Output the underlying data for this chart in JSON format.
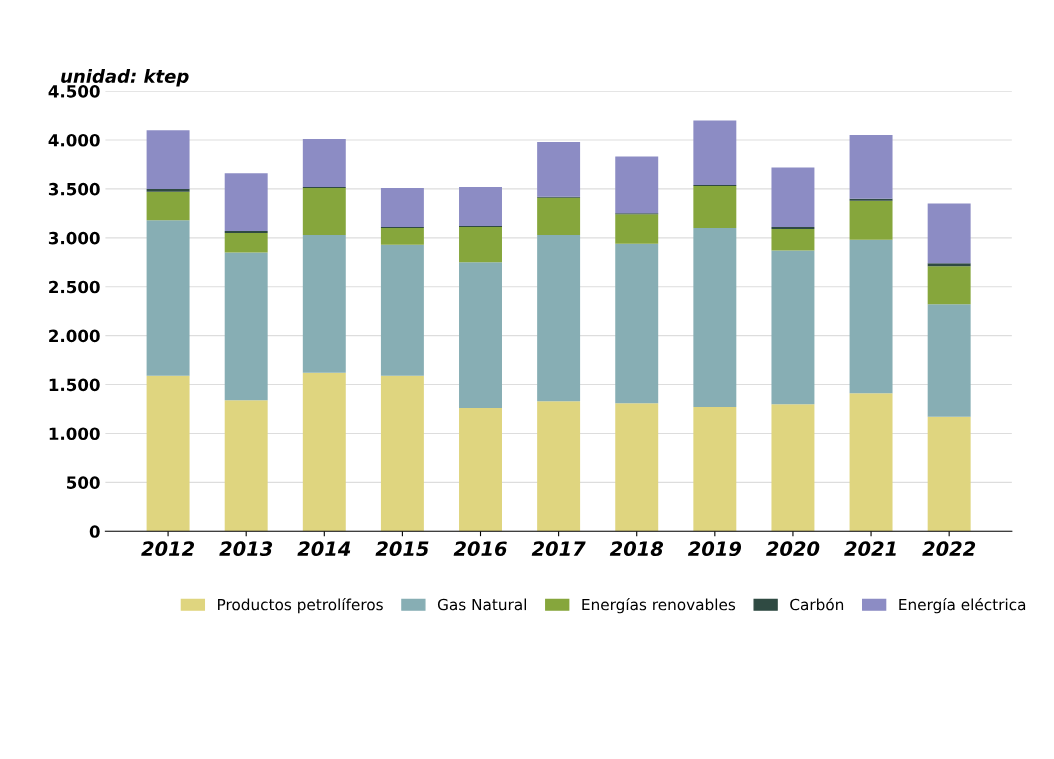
{
  "chart_data": {
    "type": "bar",
    "stacked": true,
    "ylabel": "unidad: ktep",
    "categories": [
      "2012",
      "2013",
      "2014",
      "2015",
      "2016",
      "2017",
      "2018",
      "2019",
      "2020",
      "2021",
      "2022"
    ],
    "series": [
      {
        "name": "Productos petrolíferos",
        "color": "#dfd57f",
        "values": [
          1590,
          1340,
          1620,
          1590,
          1260,
          1330,
          1310,
          1270,
          1300,
          1410,
          1170
        ]
      },
      {
        "name": "Gas Natural",
        "color": "#87aeb4",
        "values": [
          1590,
          1510,
          1410,
          1340,
          1490,
          1700,
          1630,
          1830,
          1570,
          1570,
          1150
        ]
      },
      {
        "name": "Energías renovables",
        "color": "#86a63c",
        "values": [
          290,
          200,
          480,
          170,
          360,
          380,
          300,
          430,
          220,
          400,
          390
        ]
      },
      {
        "name": "Carbón",
        "color": "#2f4a42",
        "values": [
          30,
          20,
          10,
          10,
          10,
          10,
          10,
          10,
          20,
          20,
          30
        ]
      },
      {
        "name": "Energía eléctrica",
        "color": "#8c8cc4",
        "values": [
          600,
          590,
          490,
          400,
          400,
          560,
          580,
          660,
          610,
          650,
          610
        ]
      }
    ],
    "ylim": [
      0,
      4500
    ],
    "yticks": [
      {
        "value": 0,
        "label": "0"
      },
      {
        "value": 500,
        "label": "500"
      },
      {
        "value": 1000,
        "label": "1.000"
      },
      {
        "value": 1500,
        "label": "1.500"
      },
      {
        "value": 2000,
        "label": "2.000"
      },
      {
        "value": 2500,
        "label": "2.500"
      },
      {
        "value": 3000,
        "label": "3.000"
      },
      {
        "value": 3500,
        "label": "3.500"
      },
      {
        "value": 4000,
        "label": "4.000"
      },
      {
        "value": 4500,
        "label": "4.500"
      }
    ],
    "grid": "y",
    "legend": "bottom"
  }
}
